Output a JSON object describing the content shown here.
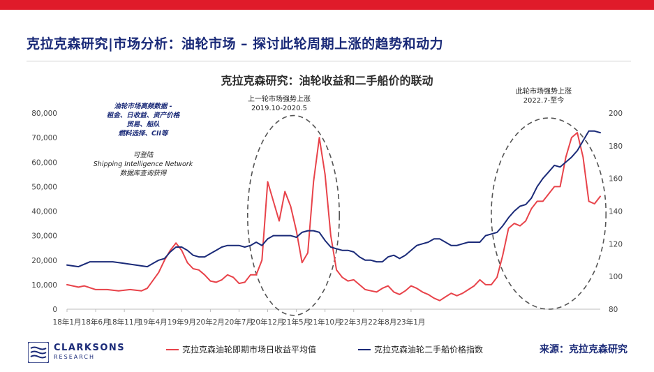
{
  "header": {
    "title": "克拉克森研究|市场分析：油轮市场 – 探讨此轮周期上涨的趋势和动力"
  },
  "colors": {
    "accent": "#e01b2a",
    "brand": "#1a2a78"
  },
  "notes": {
    "data_line1": "油轮市场高频数据 -",
    "data_line2": "租金、日收益、资产价格",
    "data_line3": "贸易、船队",
    "data_line4": "燃料选择、CII等",
    "access_line1": "可登陆",
    "access_line2": "Shipping Intelligence Network",
    "access_line3": "数据库查询获得",
    "prev_cycle_line1": "上一轮市场强势上涨",
    "prev_cycle_line2": "2019.10-2020.5",
    "curr_cycle_line1": "此轮市场强势上涨",
    "curr_cycle_line2": "2022.7-至今"
  },
  "footer": {
    "logo_name": "CLARKSONS",
    "logo_sub": "RESEARCH",
    "source": "来源：克拉克森研究"
  },
  "chart_data": {
    "type": "line",
    "title": "克拉克森研究：油轮收益和二手船价的联动",
    "x_tick_labels": [
      "18年1月",
      "18年6月",
      "18年11月",
      "19年4月",
      "19年9月",
      "20年2月",
      "20年7月",
      "20年12月",
      "21年5月",
      "21年10月",
      "22年3月",
      "22年8月",
      "23年1月"
    ],
    "y_left_ticks": [
      "0",
      "10,000",
      "20,000",
      "30,000",
      "40,000",
      "50,000",
      "60,000",
      "70,000",
      "80,000"
    ],
    "y_right_ticks": [
      "80",
      "100",
      "120",
      "140",
      "160",
      "180",
      "200"
    ],
    "ylim_left": [
      0,
      80000
    ],
    "ylim_right": [
      80,
      200
    ],
    "grid": false,
    "legend_position": "bottom",
    "series": [
      {
        "name": "克拉克森油轮即期市场日收益平均值",
        "color": "#e8434a",
        "axis": "left",
        "values": [
          [
            0,
            10000
          ],
          [
            2,
            9000
          ],
          [
            3,
            9500
          ],
          [
            5,
            8000
          ],
          [
            7,
            8000
          ],
          [
            9,
            7500
          ],
          [
            11,
            8000
          ],
          [
            13,
            7500
          ],
          [
            14,
            8500
          ],
          [
            16,
            15000
          ],
          [
            17,
            20000
          ],
          [
            18,
            24000
          ],
          [
            19,
            27000
          ],
          [
            20,
            24000
          ],
          [
            21,
            19000
          ],
          [
            22,
            16500
          ],
          [
            23,
            16000
          ],
          [
            24,
            14000
          ],
          [
            25,
            11500
          ],
          [
            26,
            11000
          ],
          [
            27,
            12000
          ],
          [
            28,
            14000
          ],
          [
            29,
            13000
          ],
          [
            30,
            10500
          ],
          [
            31,
            11000
          ],
          [
            32,
            14000
          ],
          [
            33,
            14000
          ],
          [
            34,
            20000
          ],
          [
            35,
            52000
          ],
          [
            36,
            44000
          ],
          [
            37,
            36000
          ],
          [
            38,
            48000
          ],
          [
            39,
            42000
          ],
          [
            40,
            32000
          ],
          [
            41,
            19000
          ],
          [
            42,
            23000
          ],
          [
            43,
            52000
          ],
          [
            44,
            70000
          ],
          [
            45,
            55000
          ],
          [
            46,
            30000
          ],
          [
            47,
            16000
          ],
          [
            48,
            13000
          ],
          [
            49,
            11500
          ],
          [
            50,
            12000
          ],
          [
            51,
            10000
          ],
          [
            52,
            8000
          ],
          [
            53,
            7500
          ],
          [
            54,
            7000
          ],
          [
            55,
            8500
          ],
          [
            56,
            9500
          ],
          [
            57,
            7000
          ],
          [
            58,
            6000
          ],
          [
            59,
            7500
          ],
          [
            60,
            9500
          ],
          [
            61,
            8500
          ],
          [
            62,
            7000
          ],
          [
            63,
            6000
          ],
          [
            64,
            4500
          ],
          [
            65,
            3500
          ],
          [
            66,
            5000
          ],
          [
            67,
            6500
          ],
          [
            68,
            5500
          ],
          [
            69,
            6500
          ],
          [
            70,
            8000
          ],
          [
            71,
            9500
          ],
          [
            72,
            12000
          ],
          [
            73,
            10000
          ],
          [
            74,
            10000
          ],
          [
            75,
            13000
          ],
          [
            76,
            22000
          ],
          [
            77,
            33000
          ],
          [
            78,
            35000
          ],
          [
            79,
            34000
          ],
          [
            80,
            36000
          ],
          [
            81,
            41000
          ],
          [
            82,
            44000
          ],
          [
            83,
            44000
          ],
          [
            84,
            47000
          ],
          [
            85,
            50000
          ],
          [
            86,
            50000
          ],
          [
            87,
            62000
          ],
          [
            88,
            70000
          ],
          [
            89,
            72000
          ],
          [
            90,
            62000
          ],
          [
            91,
            44000
          ],
          [
            92,
            43000
          ],
          [
            93,
            46000
          ]
        ]
      },
      {
        "name": "克拉克森油轮二手船价格指数",
        "color": "#1a2a78",
        "axis": "right",
        "values": [
          [
            0,
            107
          ],
          [
            2,
            106
          ],
          [
            4,
            109
          ],
          [
            6,
            109
          ],
          [
            8,
            109
          ],
          [
            10,
            108
          ],
          [
            12,
            107
          ],
          [
            14,
            106
          ],
          [
            15,
            108
          ],
          [
            16,
            110
          ],
          [
            17,
            111
          ],
          [
            18,
            115
          ],
          [
            19,
            118
          ],
          [
            20,
            118
          ],
          [
            21,
            116
          ],
          [
            22,
            113
          ],
          [
            23,
            112
          ],
          [
            24,
            112
          ],
          [
            25,
            114
          ],
          [
            26,
            116
          ],
          [
            27,
            118
          ],
          [
            28,
            119
          ],
          [
            29,
            119
          ],
          [
            30,
            119
          ],
          [
            31,
            118
          ],
          [
            32,
            119
          ],
          [
            33,
            121
          ],
          [
            34,
            119
          ],
          [
            35,
            123
          ],
          [
            36,
            125
          ],
          [
            37,
            125
          ],
          [
            38,
            125
          ],
          [
            39,
            125
          ],
          [
            40,
            124
          ],
          [
            41,
            127
          ],
          [
            42,
            128
          ],
          [
            43,
            128
          ],
          [
            44,
            127
          ],
          [
            45,
            122
          ],
          [
            46,
            118
          ],
          [
            47,
            117
          ],
          [
            48,
            116
          ],
          [
            49,
            116
          ],
          [
            50,
            115
          ],
          [
            51,
            112
          ],
          [
            52,
            110
          ],
          [
            53,
            110
          ],
          [
            54,
            109
          ],
          [
            55,
            109
          ],
          [
            56,
            112
          ],
          [
            57,
            113
          ],
          [
            58,
            111
          ],
          [
            59,
            113
          ],
          [
            60,
            116
          ],
          [
            61,
            119
          ],
          [
            62,
            120
          ],
          [
            63,
            121
          ],
          [
            64,
            123
          ],
          [
            65,
            123
          ],
          [
            66,
            121
          ],
          [
            67,
            119
          ],
          [
            68,
            119
          ],
          [
            69,
            120
          ],
          [
            70,
            121
          ],
          [
            71,
            121
          ],
          [
            72,
            121
          ],
          [
            73,
            125
          ],
          [
            74,
            126
          ],
          [
            75,
            127
          ],
          [
            76,
            131
          ],
          [
            77,
            136
          ],
          [
            78,
            140
          ],
          [
            79,
            143
          ],
          [
            80,
            144
          ],
          [
            81,
            148
          ],
          [
            82,
            155
          ],
          [
            83,
            160
          ],
          [
            84,
            164
          ],
          [
            85,
            168
          ],
          [
            86,
            167
          ],
          [
            87,
            170
          ],
          [
            88,
            173
          ],
          [
            89,
            177
          ],
          [
            90,
            183
          ],
          [
            91,
            189
          ],
          [
            92,
            189
          ],
          [
            93,
            188
          ]
        ]
      }
    ],
    "x_domain_months": [
      0,
      93
    ],
    "annotations": [
      "上一轮市场强势上涨 2019.10-2020.5",
      "此轮市场强势上涨 2022.7-至今"
    ]
  }
}
